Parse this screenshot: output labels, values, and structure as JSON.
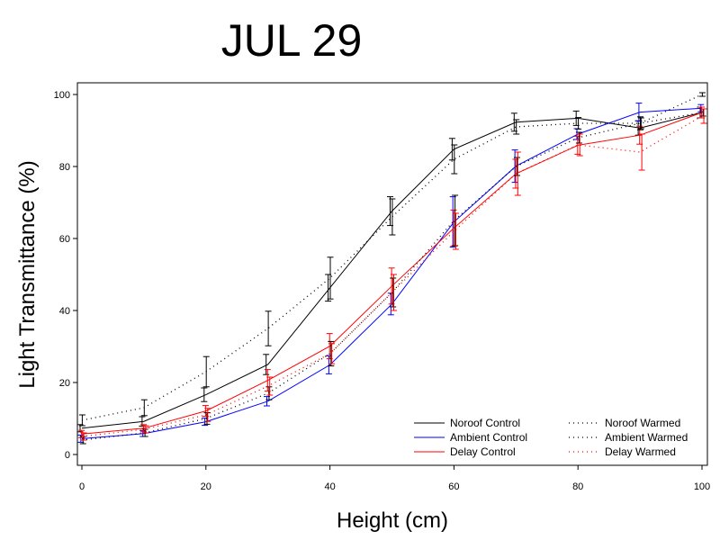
{
  "chart_data": {
    "type": "line",
    "title": "JUL 29",
    "xlabel": "Height (cm)",
    "ylabel": "Light Transmittance (%)",
    "xlim": [
      0,
      100
    ],
    "ylim": [
      0,
      100
    ],
    "xticks": [
      0,
      20,
      40,
      60,
      80,
      100
    ],
    "yticks": [
      0,
      20,
      40,
      60,
      80,
      100
    ],
    "x": [
      0,
      10,
      20,
      30,
      40,
      50,
      60,
      70,
      80,
      90,
      100
    ],
    "grid": false,
    "legend_position": "bottom-right",
    "series": [
      {
        "name": "Noroof Control",
        "style": "solid",
        "color": "#000000",
        "values": [
          7.3,
          9.2,
          16.6,
          25,
          46.3,
          67.6,
          84.8,
          92.3,
          93.4,
          90.7,
          95
        ],
        "errors": [
          1,
          1.3,
          1.9,
          2.8,
          3.7,
          4,
          3,
          2.5,
          2,
          2,
          1.5
        ]
      },
      {
        "name": "Ambient Control",
        "style": "solid",
        "color": "#0000ff",
        "values": [
          4.4,
          5.8,
          9.1,
          14.8,
          24.9,
          41.8,
          64.6,
          80.1,
          89,
          95.1,
          96.2
        ],
        "errors": [
          1,
          0.8,
          1,
          1.3,
          2.5,
          3,
          7,
          4.5,
          1.5,
          2.5,
          1
        ]
      },
      {
        "name": "Delay Control",
        "style": "solid",
        "color": "#ff0000",
        "values": [
          5.7,
          7.3,
          12.1,
          20.6,
          30.1,
          46.8,
          62.9,
          78,
          85.9,
          88.7,
          95
        ],
        "errors": [
          1,
          1,
          1.5,
          3,
          3.5,
          5,
          5,
          4,
          2.5,
          2.5,
          1.5
        ]
      },
      {
        "name": "Noroof Warmed",
        "style": "dotted",
        "color": "#000000",
        "values": [
          9.5,
          13,
          23,
          35,
          49,
          66,
          82,
          91,
          92,
          92,
          100
        ],
        "errors": [
          1.5,
          2.2,
          4.2,
          4.8,
          5.8,
          5,
          4,
          2,
          1.6,
          1.8,
          0.5
        ]
      },
      {
        "name": "Ambient Warmed",
        "style": "dotted",
        "color": "#000000",
        "values": [
          4,
          6,
          10,
          17,
          28,
          45,
          65,
          80,
          88,
          92,
          95
        ],
        "errors": [
          1,
          1,
          1.6,
          1.8,
          3.4,
          4,
          7,
          2.5,
          1.5,
          1.5,
          1
        ]
      },
      {
        "name": "Delay Warmed",
        "style": "dotted",
        "color": "#ff0000",
        "values": [
          5,
          7,
          11,
          19,
          28,
          45,
          62,
          78,
          86,
          84,
          94
        ],
        "errors": [
          1,
          1,
          1.8,
          2.5,
          2.8,
          5,
          5,
          6,
          3,
          5,
          2
        ]
      }
    ]
  }
}
